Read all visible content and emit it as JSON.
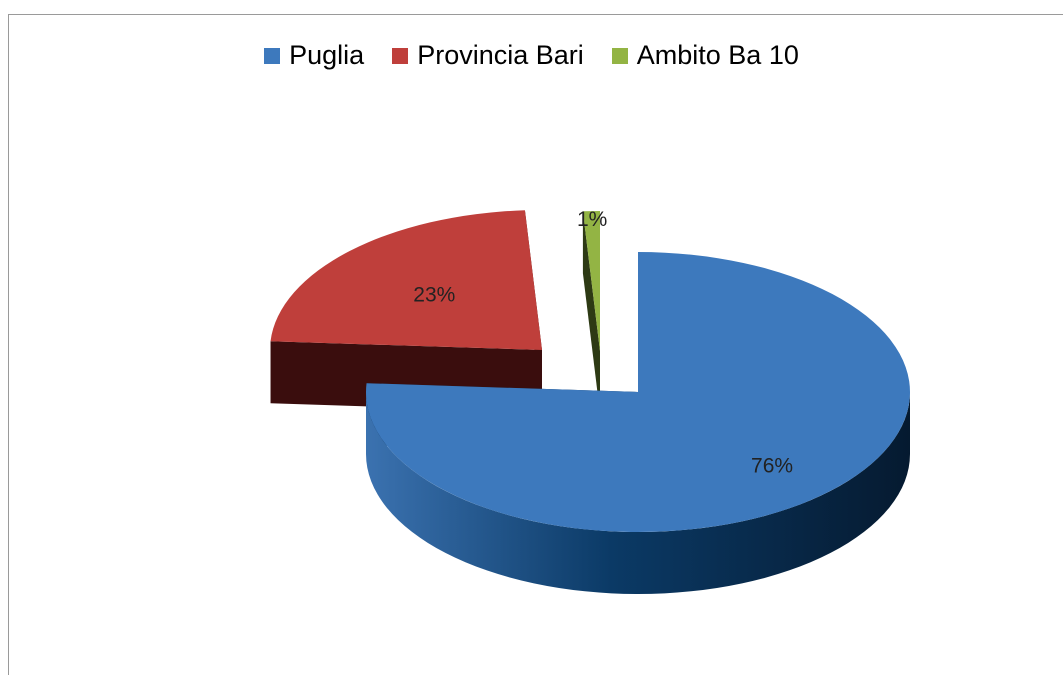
{
  "chart_data": {
    "type": "pie",
    "title": "",
    "legend_position": "top",
    "series": [
      {
        "name": "Puglia",
        "value": 76,
        "label": "76%",
        "color": "#3d79bd",
        "dark": "#0b2c4e"
      },
      {
        "name": "Provincia Bari",
        "value": 23,
        "label": "23%",
        "color": "#bf3f3b",
        "dark": "#3a0d0d"
      },
      {
        "name": "Ambito Ba 10",
        "value": 1,
        "label": "1%",
        "color": "#93b444",
        "dark": "#2d3a14"
      }
    ]
  }
}
